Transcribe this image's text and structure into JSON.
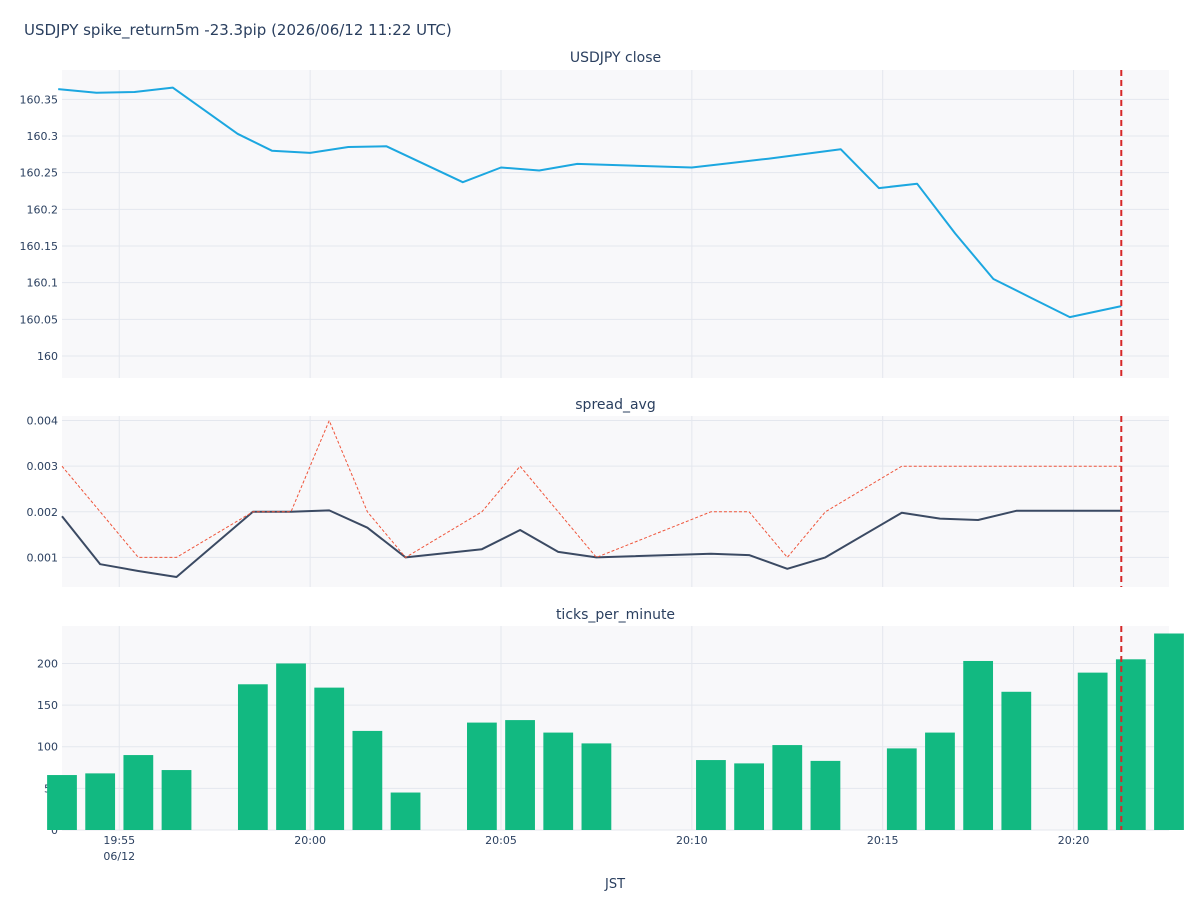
{
  "figure": {
    "title": "USDJPY spike_return5m -23.3pip (2026/06/12 11:22 UTC)",
    "xlabel": "JST",
    "x_ticks": [
      {
        "minute": 1,
        "label": "19:55",
        "sublabel": "06/12"
      },
      {
        "minute": 6,
        "label": "20:00"
      },
      {
        "minute": 11,
        "label": "20:05"
      },
      {
        "minute": 16,
        "label": "20:10"
      },
      {
        "minute": 21,
        "label": "20:15"
      },
      {
        "minute": 26,
        "label": "20:20"
      }
    ],
    "event_marker": {
      "minute": 27.25,
      "color": "#d62728",
      "style": "dashed"
    },
    "x_range": [
      -0.5,
      28.5
    ]
  },
  "chart_data": [
    {
      "type": "line",
      "title": "USDJPY close",
      "ylim": [
        159.97,
        160.39
      ],
      "yticks": [
        160,
        160.05,
        160.1,
        160.15,
        160.2,
        160.25,
        160.3,
        160.35
      ],
      "ytick_labels": [
        "160",
        "160.05",
        "160.1",
        "160.15",
        "160.2",
        "160.25",
        "160.3",
        "160.35"
      ],
      "grid": true,
      "series": [
        {
          "color": "#1ca7e0",
          "x": [
            -0.6,
            0.4,
            1.4,
            2.4,
            4.1,
            5.0,
            6.0,
            7.0,
            8.0,
            10.0,
            11.0,
            12.0,
            13.0,
            16.0,
            17.0,
            18.0,
            19.9,
            20.9,
            21.9,
            22.9,
            23.9,
            24.9,
            25.9,
            27.25
          ],
          "y": [
            160.364,
            160.359,
            160.36,
            160.366,
            160.303,
            160.28,
            160.277,
            160.285,
            160.286,
            160.237,
            160.257,
            160.253,
            160.262,
            160.257,
            160.263,
            160.269,
            160.282,
            160.229,
            160.235,
            160.167,
            160.105,
            160.079,
            160.053,
            160.068
          ]
        }
      ]
    },
    {
      "type": "line",
      "title": "spread_avg",
      "ylim": [
        0.00035,
        0.0041
      ],
      "yticks": [
        0.001,
        0.002,
        0.003,
        0.004
      ],
      "ytick_labels": [
        "0.001",
        "0.002",
        "0.003",
        "0.004"
      ],
      "grid": true,
      "series": [
        {
          "color": "#3b4a63",
          "style": "solid",
          "x": [
            -0.5,
            0.5,
            1.5,
            2.5,
            4.5,
            5.5,
            6.5,
            7.5,
            8.5,
            10.5,
            11.5,
            12.5,
            13.5,
            16.5,
            17.5,
            18.5,
            19.5,
            21.5,
            22.5,
            23.5,
            24.5,
            27.25
          ],
          "y": [
            0.0019,
            0.00085,
            0.0007,
            0.00057,
            0.002,
            0.002,
            0.00203,
            0.00165,
            0.001,
            0.00118,
            0.0016,
            0.00112,
            0.001,
            0.00108,
            0.00105,
            0.00075,
            0.001,
            0.00198,
            0.00185,
            0.00182,
            0.00202,
            0.00202
          ]
        },
        {
          "color": "#ef553b",
          "style": "dotted",
          "x": [
            -0.5,
            0.5,
            1.5,
            2.5,
            4.5,
            5.5,
            6.5,
            7.5,
            8.5,
            10.5,
            11.5,
            12.5,
            13.5,
            16.5,
            17.5,
            18.5,
            19.5,
            21.5,
            22.5,
            23.5,
            24.5,
            27.25
          ],
          "y": [
            0.003,
            0.002,
            0.001,
            0.001,
            0.002,
            0.002,
            0.004,
            0.002,
            0.001,
            0.002,
            0.003,
            0.002,
            0.001,
            0.002,
            0.002,
            0.001,
            0.002,
            0.003,
            0.003,
            0.003,
            0.003,
            0.003
          ]
        }
      ]
    },
    {
      "type": "bar",
      "title": "ticks_per_minute",
      "ylim": [
        0,
        245
      ],
      "yticks": [
        0,
        50,
        100,
        150,
        200
      ],
      "ytick_labels": [
        "0",
        "50",
        "100",
        "150",
        "200"
      ],
      "grid": true,
      "bar_color": "#12b981",
      "x": [
        -0.5,
        0.5,
        1.5,
        2.5,
        4.5,
        5.5,
        6.5,
        7.5,
        8.5,
        10.5,
        11.5,
        12.5,
        13.5,
        16.5,
        17.5,
        18.5,
        19.5,
        21.5,
        22.5,
        23.5,
        24.5,
        26.5,
        27.5,
        28.5
      ],
      "values": [
        66,
        68,
        90,
        72,
        175,
        200,
        171,
        119,
        45,
        129,
        132,
        117,
        104,
        84,
        80,
        102,
        83,
        98,
        117,
        203,
        166,
        189,
        205,
        236
      ]
    }
  ]
}
